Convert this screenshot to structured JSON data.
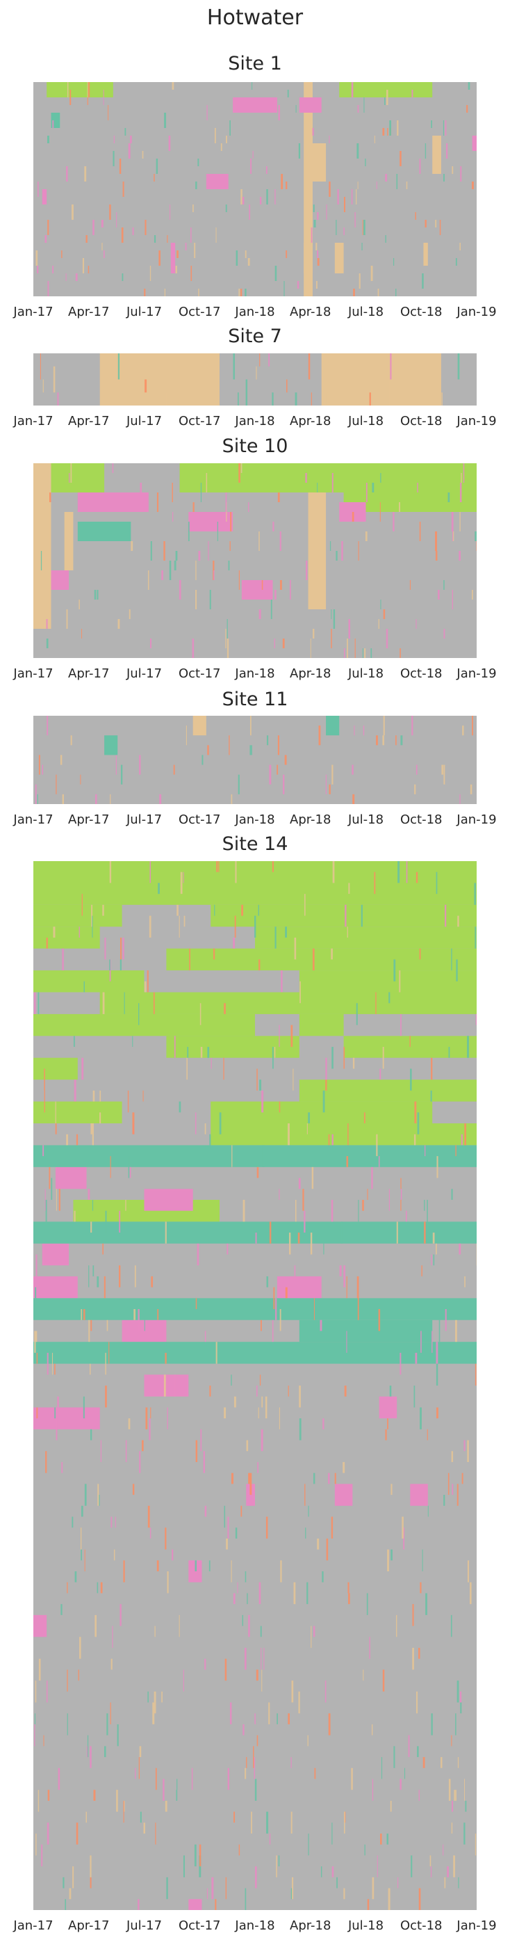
{
  "figure": {
    "title": "Hotwater"
  },
  "colors": {
    "background": "#b3b3b3",
    "green": "#a6d854",
    "tan": "#e5c494",
    "pink": "#e78ac3",
    "teal": "#66c2a5",
    "orange": "#fc8d62"
  },
  "chart_data": [
    {
      "type": "heatmap",
      "title": "Site 1",
      "x_tick_labels": [
        "Jan-17",
        "Apr-17",
        "Jul-17",
        "Oct-17",
        "Jan-18",
        "Apr-18",
        "Jul-18",
        "Oct-18",
        "Jan-19"
      ],
      "x_range": [
        "2017-01-01",
        "2019-01-01"
      ],
      "rows": 28,
      "blocks": [
        {
          "c": "green",
          "x0": 0.03,
          "x1": 0.18,
          "r0": 0,
          "r1": 2
        },
        {
          "c": "green",
          "x0": 0.69,
          "x1": 0.9,
          "r0": 0,
          "r1": 2
        },
        {
          "c": "tan",
          "x0": 0.61,
          "x1": 0.63,
          "r0": 0,
          "r1": 28
        },
        {
          "c": "pink",
          "x0": 0.45,
          "x1": 0.55,
          "r0": 2,
          "r1": 4
        },
        {
          "c": "pink",
          "x0": 0.6,
          "x1": 0.65,
          "r0": 2,
          "r1": 4
        },
        {
          "c": "teal",
          "x0": 0.04,
          "x1": 0.06,
          "r0": 4,
          "r1": 6
        },
        {
          "c": "tan",
          "x0": 0.62,
          "x1": 0.66,
          "r0": 8,
          "r1": 13
        },
        {
          "c": "pink",
          "x0": 0.39,
          "x1": 0.44,
          "r0": 12,
          "r1": 14
        },
        {
          "c": "tan",
          "x0": 0.9,
          "x1": 0.92,
          "r0": 7,
          "r1": 12
        },
        {
          "c": "pink",
          "x0": 0.02,
          "x1": 0.03,
          "r0": 14,
          "r1": 16
        },
        {
          "c": "pink",
          "x0": 0.31,
          "x1": 0.32,
          "r0": 21,
          "r1": 25
        },
        {
          "c": "tan",
          "x0": 0.61,
          "x1": 0.63,
          "r0": 21,
          "r1": 25
        },
        {
          "c": "tan",
          "x0": 0.68,
          "x1": 0.7,
          "r0": 21,
          "r1": 25
        },
        {
          "c": "tan",
          "x0": 0.88,
          "x1": 0.89,
          "r0": 21,
          "r1": 24
        },
        {
          "c": "pink",
          "x0": 0.99,
          "x1": 1.0,
          "r0": 7,
          "r1": 9
        }
      ]
    },
    {
      "type": "heatmap",
      "title": "Site 7",
      "x_tick_labels": [
        "Jan-17",
        "Apr-17",
        "Jul-17",
        "Oct-17",
        "Jan-18",
        "Apr-18",
        "Jul-18",
        "Oct-18",
        "Jan-19"
      ],
      "x_range": [
        "2017-01-01",
        "2019-01-01"
      ],
      "rows": 4,
      "blocks": [
        {
          "c": "tan",
          "x0": 0.15,
          "x1": 0.42,
          "r0": 0,
          "r1": 4
        },
        {
          "c": "tan",
          "x0": 0.65,
          "x1": 0.92,
          "r0": 0,
          "r1": 4
        }
      ]
    },
    {
      "type": "heatmap",
      "title": "Site 10",
      "x_tick_labels": [
        "Jan-17",
        "Apr-17",
        "Jul-17",
        "Oct-17",
        "Jan-18",
        "Apr-18",
        "Jul-18",
        "Oct-18",
        "Jan-19"
      ],
      "x_range": [
        "2017-01-01",
        "2019-01-01"
      ],
      "rows": 20,
      "blocks": [
        {
          "c": "tan",
          "x0": 0.0,
          "x1": 0.04,
          "r0": 0,
          "r1": 17
        },
        {
          "c": "green",
          "x0": 0.04,
          "x1": 0.16,
          "r0": 0,
          "r1": 3
        },
        {
          "c": "green",
          "x0": 0.33,
          "x1": 1.0,
          "r0": 0,
          "r1": 3
        },
        {
          "c": "green",
          "x0": 0.7,
          "x1": 1.0,
          "r0": 3,
          "r1": 5
        },
        {
          "c": "pink",
          "x0": 0.1,
          "x1": 0.26,
          "r0": 3,
          "r1": 5
        },
        {
          "c": "pink",
          "x0": 0.35,
          "x1": 0.45,
          "r0": 5,
          "r1": 7
        },
        {
          "c": "pink",
          "x0": 0.47,
          "x1": 0.54,
          "r0": 12,
          "r1": 14
        },
        {
          "c": "pink",
          "x0": 0.04,
          "x1": 0.08,
          "r0": 11,
          "r1": 13
        },
        {
          "c": "tan",
          "x0": 0.62,
          "x1": 0.66,
          "r0": 3,
          "r1": 15
        },
        {
          "c": "tan",
          "x0": 0.07,
          "x1": 0.09,
          "r0": 5,
          "r1": 11
        },
        {
          "c": "pink",
          "x0": 0.69,
          "x1": 0.75,
          "r0": 4,
          "r1": 6
        },
        {
          "c": "teal",
          "x0": 0.1,
          "x1": 0.22,
          "r0": 6,
          "r1": 8
        }
      ]
    },
    {
      "type": "heatmap",
      "title": "Site 11",
      "x_tick_labels": [
        "Jan-17",
        "Apr-17",
        "Jul-17",
        "Oct-17",
        "Jan-18",
        "Apr-18",
        "Jul-18",
        "Oct-18",
        "Jan-19"
      ],
      "x_range": [
        "2017-01-01",
        "2019-01-01"
      ],
      "rows": 9,
      "blocks": [
        {
          "c": "teal",
          "x0": 0.16,
          "x1": 0.19,
          "r0": 2,
          "r1": 4
        },
        {
          "c": "teal",
          "x0": 0.66,
          "x1": 0.69,
          "r0": 0,
          "r1": 2
        },
        {
          "c": "tan",
          "x0": 0.36,
          "x1": 0.39,
          "r0": 0,
          "r1": 2
        }
      ]
    },
    {
      "type": "heatmap",
      "title": "Site 14",
      "x_tick_labels": [
        "Jan-17",
        "Apr-17",
        "Jul-17",
        "Oct-17",
        "Jan-18",
        "Apr-18",
        "Jul-18",
        "Oct-18",
        "Jan-19"
      ],
      "x_range": [
        "2017-01-01",
        "2019-01-01"
      ],
      "rows": 96,
      "blocks": [
        {
          "c": "green",
          "x0": 0.0,
          "x1": 1.0,
          "r0": 0,
          "r1": 4
        },
        {
          "c": "green",
          "x0": 0.0,
          "x1": 0.2,
          "r0": 4,
          "r1": 6
        },
        {
          "c": "green",
          "x0": 0.4,
          "x1": 1.0,
          "r0": 4,
          "r1": 6
        },
        {
          "c": "green",
          "x0": 0.0,
          "x1": 0.15,
          "r0": 6,
          "r1": 8
        },
        {
          "c": "green",
          "x0": 0.5,
          "x1": 1.0,
          "r0": 6,
          "r1": 8
        },
        {
          "c": "green",
          "x0": 0.3,
          "x1": 1.0,
          "r0": 8,
          "r1": 10
        },
        {
          "c": "green",
          "x0": 0.0,
          "x1": 0.25,
          "r0": 10,
          "r1": 12
        },
        {
          "c": "green",
          "x0": 0.6,
          "x1": 1.0,
          "r0": 10,
          "r1": 12
        },
        {
          "c": "green",
          "x0": 0.15,
          "x1": 1.0,
          "r0": 12,
          "r1": 14
        },
        {
          "c": "green",
          "x0": 0.0,
          "x1": 0.5,
          "r0": 14,
          "r1": 16
        },
        {
          "c": "green",
          "x0": 0.6,
          "x1": 0.7,
          "r0": 14,
          "r1": 16
        },
        {
          "c": "green",
          "x0": 0.3,
          "x1": 0.6,
          "r0": 16,
          "r1": 18
        },
        {
          "c": "green",
          "x0": 0.7,
          "x1": 1.0,
          "r0": 16,
          "r1": 18
        },
        {
          "c": "green",
          "x0": 0.0,
          "x1": 0.1,
          "r0": 18,
          "r1": 20
        },
        {
          "c": "green",
          "x0": 0.6,
          "x1": 1.0,
          "r0": 20,
          "r1": 22
        },
        {
          "c": "green",
          "x0": 0.0,
          "x1": 0.2,
          "r0": 22,
          "r1": 24
        },
        {
          "c": "green",
          "x0": 0.4,
          "x1": 0.9,
          "r0": 22,
          "r1": 24
        },
        {
          "c": "green",
          "x0": 0.4,
          "x1": 1.0,
          "r0": 24,
          "r1": 26
        },
        {
          "c": "green",
          "x0": 0.09,
          "x1": 0.42,
          "r0": 31,
          "r1": 33
        },
        {
          "c": "pink",
          "x0": 0.25,
          "x1": 0.36,
          "r0": 30,
          "r1": 32
        },
        {
          "c": "pink",
          "x0": 0.05,
          "x1": 0.12,
          "r0": 28,
          "r1": 30
        },
        {
          "c": "pink",
          "x0": 0.02,
          "x1": 0.08,
          "r0": 35,
          "r1": 37
        },
        {
          "c": "pink",
          "x0": 0.0,
          "x1": 0.1,
          "r0": 38,
          "r1": 40
        },
        {
          "c": "pink",
          "x0": 0.2,
          "x1": 0.3,
          "r0": 42,
          "r1": 44
        },
        {
          "c": "pink",
          "x0": 0.55,
          "x1": 0.65,
          "r0": 38,
          "r1": 40
        },
        {
          "c": "pink",
          "x0": 0.25,
          "x1": 0.35,
          "r0": 47,
          "r1": 49
        },
        {
          "c": "pink",
          "x0": 0.0,
          "x1": 0.15,
          "r0": 50,
          "r1": 52
        },
        {
          "c": "pink",
          "x0": 0.78,
          "x1": 0.82,
          "r0": 49,
          "r1": 51
        },
        {
          "c": "pink",
          "x0": 0.68,
          "x1": 0.72,
          "r0": 57,
          "r1": 59
        },
        {
          "c": "pink",
          "x0": 0.85,
          "x1": 0.89,
          "r0": 57,
          "r1": 59
        },
        {
          "c": "pink",
          "x0": 0.35,
          "x1": 0.38,
          "r0": 64,
          "r1": 66
        },
        {
          "c": "pink",
          "x0": 0.48,
          "x1": 0.5,
          "r0": 57,
          "r1": 59
        },
        {
          "c": "pink",
          "x0": 0.0,
          "x1": 0.03,
          "r0": 69,
          "r1": 71
        },
        {
          "c": "pink",
          "x0": 0.35,
          "x1": 0.38,
          "r0": 95,
          "r1": 96
        },
        {
          "c": "teal",
          "x0": 0.0,
          "x1": 1.0,
          "r0": 26,
          "r1": 28
        },
        {
          "c": "teal",
          "x0": 0.0,
          "x1": 1.0,
          "r0": 33,
          "r1": 35
        },
        {
          "c": "teal",
          "x0": 0.0,
          "x1": 1.0,
          "r0": 40,
          "r1": 42
        },
        {
          "c": "teal",
          "x0": 0.0,
          "x1": 1.0,
          "r0": 44,
          "r1": 46
        },
        {
          "c": "teal",
          "x0": 0.6,
          "x1": 0.9,
          "r0": 42,
          "r1": 44
        }
      ]
    }
  ]
}
